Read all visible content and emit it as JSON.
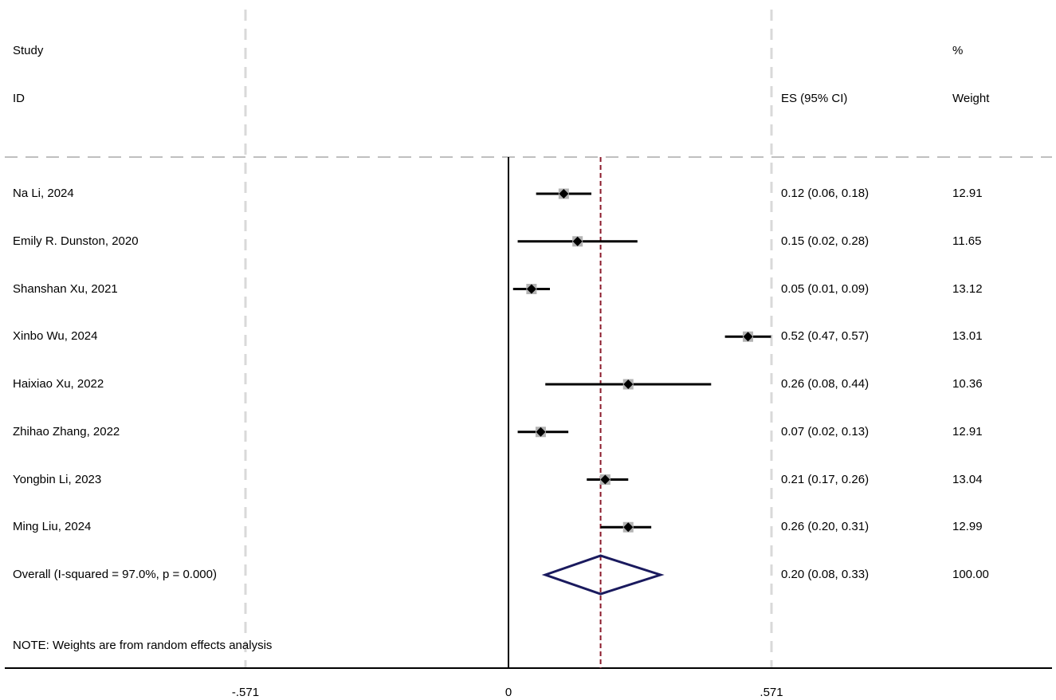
{
  "headers": {
    "study": "Study",
    "id": "ID",
    "es": "ES (95% CI)",
    "percent": "%",
    "weight": "Weight"
  },
  "note": "NOTE: Weights are from random effects analysis",
  "colors": {
    "ci_line": "#000000",
    "weight_box": "#b3b3b3",
    "point": "#000000",
    "overall_diamond": "#1a1a5e",
    "overall_line": "#8b1a2b",
    "grid_dashed": "#d9d9d9"
  },
  "chart_data": {
    "type": "forest",
    "x_ticks": [
      {
        "value": -0.571,
        "label": "-.571"
      },
      {
        "value": 0,
        "label": "0"
      },
      {
        "value": 0.571,
        "label": ".571"
      }
    ],
    "studies": [
      {
        "label": "Na Li,  2024",
        "es": 0.12,
        "lo": 0.06,
        "hi": 0.18,
        "es_text": "0.12 (0.06, 0.18)",
        "weight": 12.91,
        "weight_text": "12.91"
      },
      {
        "label": "Emily R. Dunston,  2020",
        "es": 0.15,
        "lo": 0.02,
        "hi": 0.28,
        "es_text": "0.15 (0.02, 0.28)",
        "weight": 11.65,
        "weight_text": "11.65"
      },
      {
        "label": "Shanshan Xu,  2021",
        "es": 0.05,
        "lo": 0.01,
        "hi": 0.09,
        "es_text": "0.05 (0.01, 0.09)",
        "weight": 13.12,
        "weight_text": "13.12"
      },
      {
        "label": "Xinbo Wu,  2024",
        "es": 0.52,
        "lo": 0.47,
        "hi": 0.57,
        "es_text": "0.52 (0.47, 0.57)",
        "weight": 13.01,
        "weight_text": "13.01"
      },
      {
        "label": "Haixiao Xu,  2022",
        "es": 0.26,
        "lo": 0.08,
        "hi": 0.44,
        "es_text": "0.26 (0.08, 0.44)",
        "weight": 10.36,
        "weight_text": "10.36"
      },
      {
        "label": "Zhihao Zhang,  2022",
        "es": 0.07,
        "lo": 0.02,
        "hi": 0.13,
        "es_text": "0.07 (0.02, 0.13)",
        "weight": 12.91,
        "weight_text": "12.91"
      },
      {
        "label": "Yongbin Li,  2023",
        "es": 0.21,
        "lo": 0.17,
        "hi": 0.26,
        "es_text": "0.21 (0.17, 0.26)",
        "weight": 13.04,
        "weight_text": "13.04"
      },
      {
        "label": "Ming Liu,  2024",
        "es": 0.26,
        "lo": 0.2,
        "hi": 0.31,
        "es_text": "0.26 (0.20, 0.31)",
        "weight": 12.99,
        "weight_text": "12.99"
      }
    ],
    "overall": {
      "label": "Overall  (I-squared = 97.0%, p = 0.000)",
      "es": 0.2,
      "lo": 0.08,
      "hi": 0.33,
      "es_text": "0.20 (0.08, 0.33)",
      "weight_text": "100.00"
    }
  }
}
